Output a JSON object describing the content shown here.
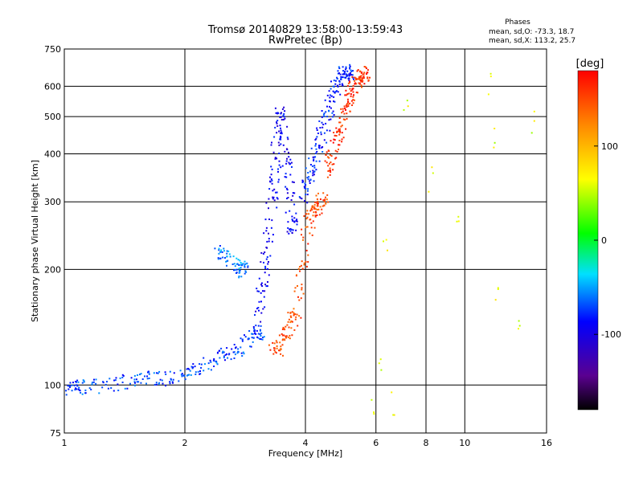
{
  "chart_data": {
    "type": "scatter",
    "title": "Tromsø 20140829 13:58:00-13:59:43",
    "subtitle": "RwPretec (Bp)",
    "xlabel": "Frequency [MHz]",
    "ylabel": "Stationary phase Virtual Height [km]",
    "x_scale": "log",
    "y_scale": "log",
    "xlim": [
      1,
      16
    ],
    "ylim": [
      75,
      750
    ],
    "x_ticks": [
      1,
      2,
      4,
      6,
      8,
      10,
      16
    ],
    "x_tick_labels": [
      "1",
      "2",
      "4",
      "6",
      "8",
      "10",
      "16"
    ],
    "y_ticks": [
      75,
      100,
      200,
      300,
      400,
      500,
      600,
      750
    ],
    "y_tick_labels": [
      "75",
      "100",
      "200",
      "300",
      "400",
      "500",
      "600",
      "750"
    ],
    "grid": true,
    "phases": {
      "heading": "Phases",
      "line1": "mean, sd,O: -73.3, 18.7",
      "line2": "mean, sd,X: 113.2, 25.7"
    },
    "colorbar": {
      "label": "[deg]",
      "min": -180,
      "max": 180,
      "ticks": [
        100,
        0,
        -100
      ],
      "tick_labels": [
        "100",
        "0",
        "-100"
      ],
      "colormap": "rainbow"
    },
    "series": [
      {
        "trace": "o-low",
        "phase": -72,
        "x": [
          1.0,
          1.05,
          1.1,
          1.2,
          1.35,
          1.5,
          1.6,
          1.75,
          1.9,
          2.05,
          2.2,
          2.35,
          2.5,
          2.65,
          2.8,
          2.95,
          3.05
        ],
        "y": [
          98,
          99,
          99,
          100,
          101,
          104,
          106,
          104,
          105,
          110,
          112,
          118,
          120,
          123,
          128,
          133,
          138
        ]
      },
      {
        "trace": "o-mid",
        "phase": -95,
        "x": [
          3.05,
          3.1,
          3.15,
          3.2,
          3.25,
          3.3,
          3.35,
          3.4,
          3.45,
          3.5,
          3.55,
          3.6,
          3.65,
          3.7
        ],
        "y": [
          150,
          175,
          200,
          230,
          270,
          320,
          380,
          450,
          520,
          470,
          410,
          360,
          300,
          260
        ]
      },
      {
        "trace": "o-high",
        "phase": -82,
        "x": [
          3.9,
          4.0,
          4.1,
          4.2,
          4.3,
          4.4,
          4.5,
          4.6,
          4.7,
          4.8,
          4.9,
          5.0,
          5.1
        ],
        "y": [
          300,
          330,
          360,
          390,
          420,
          460,
          500,
          540,
          580,
          620,
          650,
          660,
          650
        ]
      },
      {
        "trace": "x-mid",
        "phase": 150,
        "x": [
          3.3,
          3.4,
          3.5,
          3.6,
          3.7,
          3.8,
          3.9,
          4.0,
          4.1,
          4.2,
          4.3,
          4.4
        ],
        "y": [
          122,
          125,
          130,
          140,
          150,
          160,
          200,
          250,
          275,
          285,
          295,
          305
        ]
      },
      {
        "trace": "x-high",
        "phase": 160,
        "x": [
          4.5,
          4.6,
          4.7,
          4.8,
          4.9,
          5.0,
          5.1,
          5.2,
          5.3,
          5.4,
          5.5,
          5.6
        ],
        "y": [
          340,
          380,
          420,
          450,
          480,
          520,
          550,
          580,
          610,
          630,
          640,
          650
        ]
      },
      {
        "trace": "patch",
        "phase": -60,
        "x": [
          2.4,
          2.5,
          2.6,
          2.7,
          2.8
        ],
        "y": [
          225,
          220,
          212,
          205,
          200
        ]
      },
      {
        "trace": "scattered",
        "phase": 60,
        "x": [
          5.9,
          6.1,
          6.3,
          6.6,
          7.1,
          8.2,
          9.5,
          11.5,
          11.8,
          12.0,
          13.5,
          14.8
        ],
        "y": [
          85,
          110,
          230,
          90,
          520,
          340,
          280,
          620,
          430,
          180,
          150,
          500
        ]
      }
    ]
  }
}
